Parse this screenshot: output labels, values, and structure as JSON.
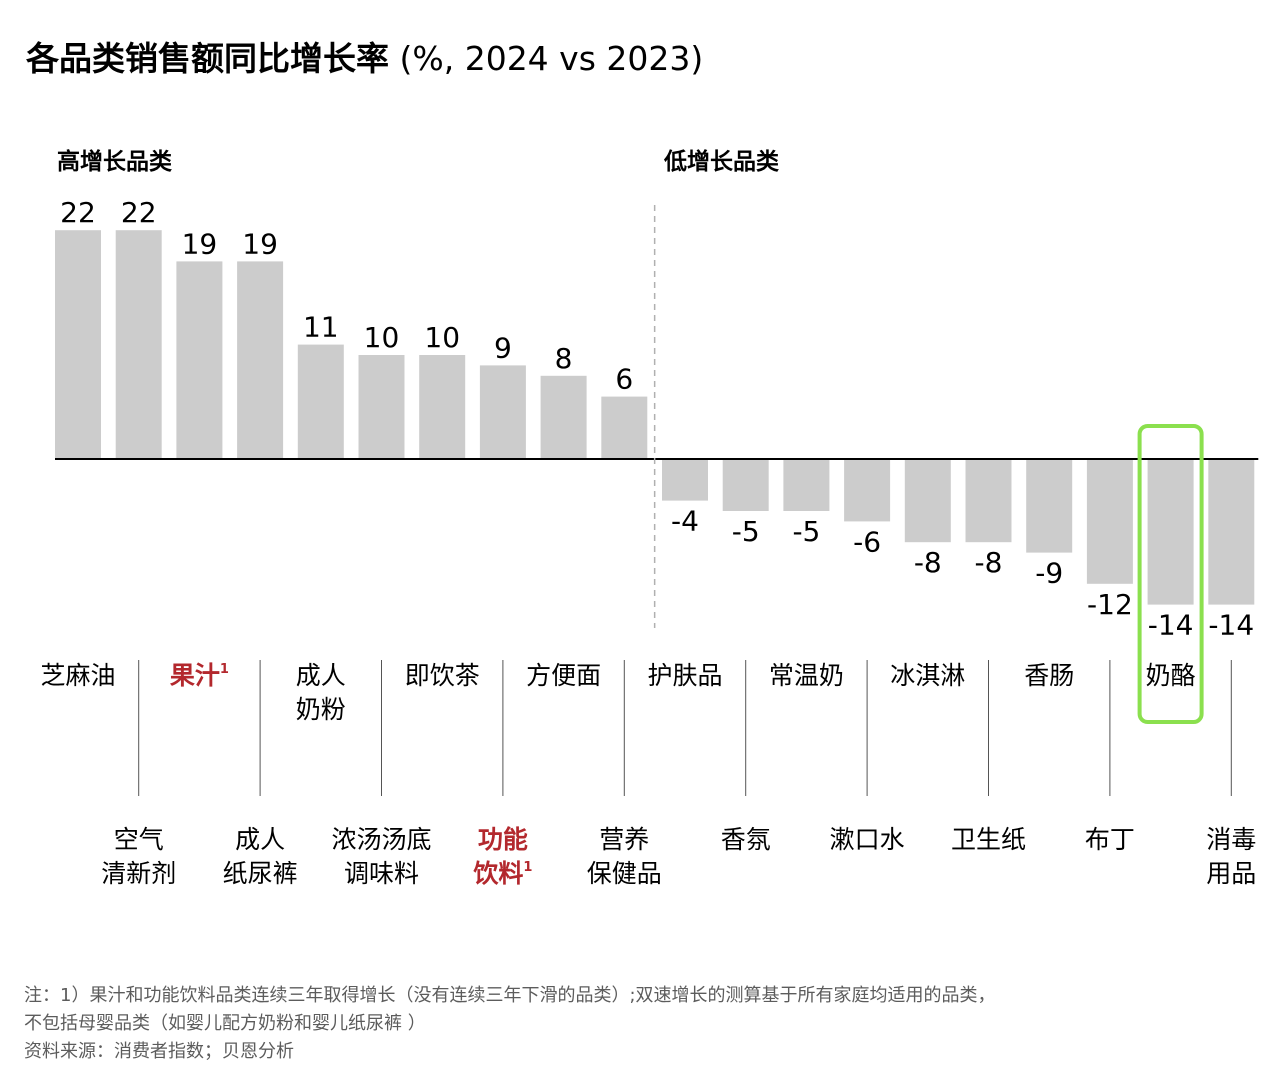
{
  "title_bold": "各品类销售额同比增长率",
  "title_rest": " (%, 2024 vs 2023)",
  "section_high": "高增长品类",
  "section_low": "低增长品类",
  "colors": {
    "bar": "#cccccc",
    "highlight_text": "#b3282d",
    "highlight_box": "#8be04e",
    "axis": "#000000",
    "divider": "#b0b0b0",
    "tick": "#555555",
    "footnote": "#5c5c5c"
  },
  "chart_data": {
    "type": "bar",
    "title": "各品类销售额同比增长率 (%, 2024 vs 2023)",
    "categories": [
      [
        "芝麻油"
      ],
      [
        "空气",
        "清新剂"
      ],
      [
        "果汁"
      ],
      [
        "成人",
        "纸尿裤"
      ],
      [
        "成人",
        "奶粉"
      ],
      [
        "浓汤汤底",
        "调味料"
      ],
      [
        "即饮茶"
      ],
      [
        "功能",
        "饮料"
      ],
      [
        "方便面"
      ],
      [
        "营养",
        "保健品"
      ],
      [
        "护肤品"
      ],
      [
        "香氛"
      ],
      [
        "常温奶"
      ],
      [
        "漱口水"
      ],
      [
        "冰淇淋"
      ],
      [
        "卫生纸"
      ],
      [
        "香肠"
      ],
      [
        "布丁"
      ],
      [
        "奶酪"
      ],
      [
        "消毒",
        "用品"
      ]
    ],
    "values": [
      22,
      22,
      19,
      19,
      11,
      10,
      10,
      9,
      8,
      6,
      -4,
      -5,
      -5,
      -6,
      -8,
      -8,
      -9,
      -12,
      -14,
      -14
    ],
    "value_labels": [
      "22",
      "22",
      "19",
      "19",
      "11",
      "10",
      "10",
      "9",
      "8",
      "6",
      "-4",
      "-5",
      "-5",
      "-6",
      "-8",
      "-8",
      "-9",
      "-12",
      "-14",
      "-14"
    ],
    "highlighted_red": [
      "果汁",
      "功能饮料"
    ],
    "superscript": "1",
    "boxed_category": "奶酪",
    "groups": [
      {
        "label": "高增长品类",
        "count": 10
      },
      {
        "label": "低增长品类",
        "count": 10
      }
    ],
    "ylim": [
      -17,
      23
    ],
    "grid": false,
    "legend": "none"
  },
  "footnotes": [
    "注：1）果汁和功能饮料品类连续三年取得增长（没有连续三年下滑的品类）;双速增长的测算基于所有家庭均适用的品类，",
    "不包括母婴品类（如婴儿配方奶粉和婴儿纸尿裤 ）",
    "资料来源：消费者指数；贝恩分析"
  ]
}
